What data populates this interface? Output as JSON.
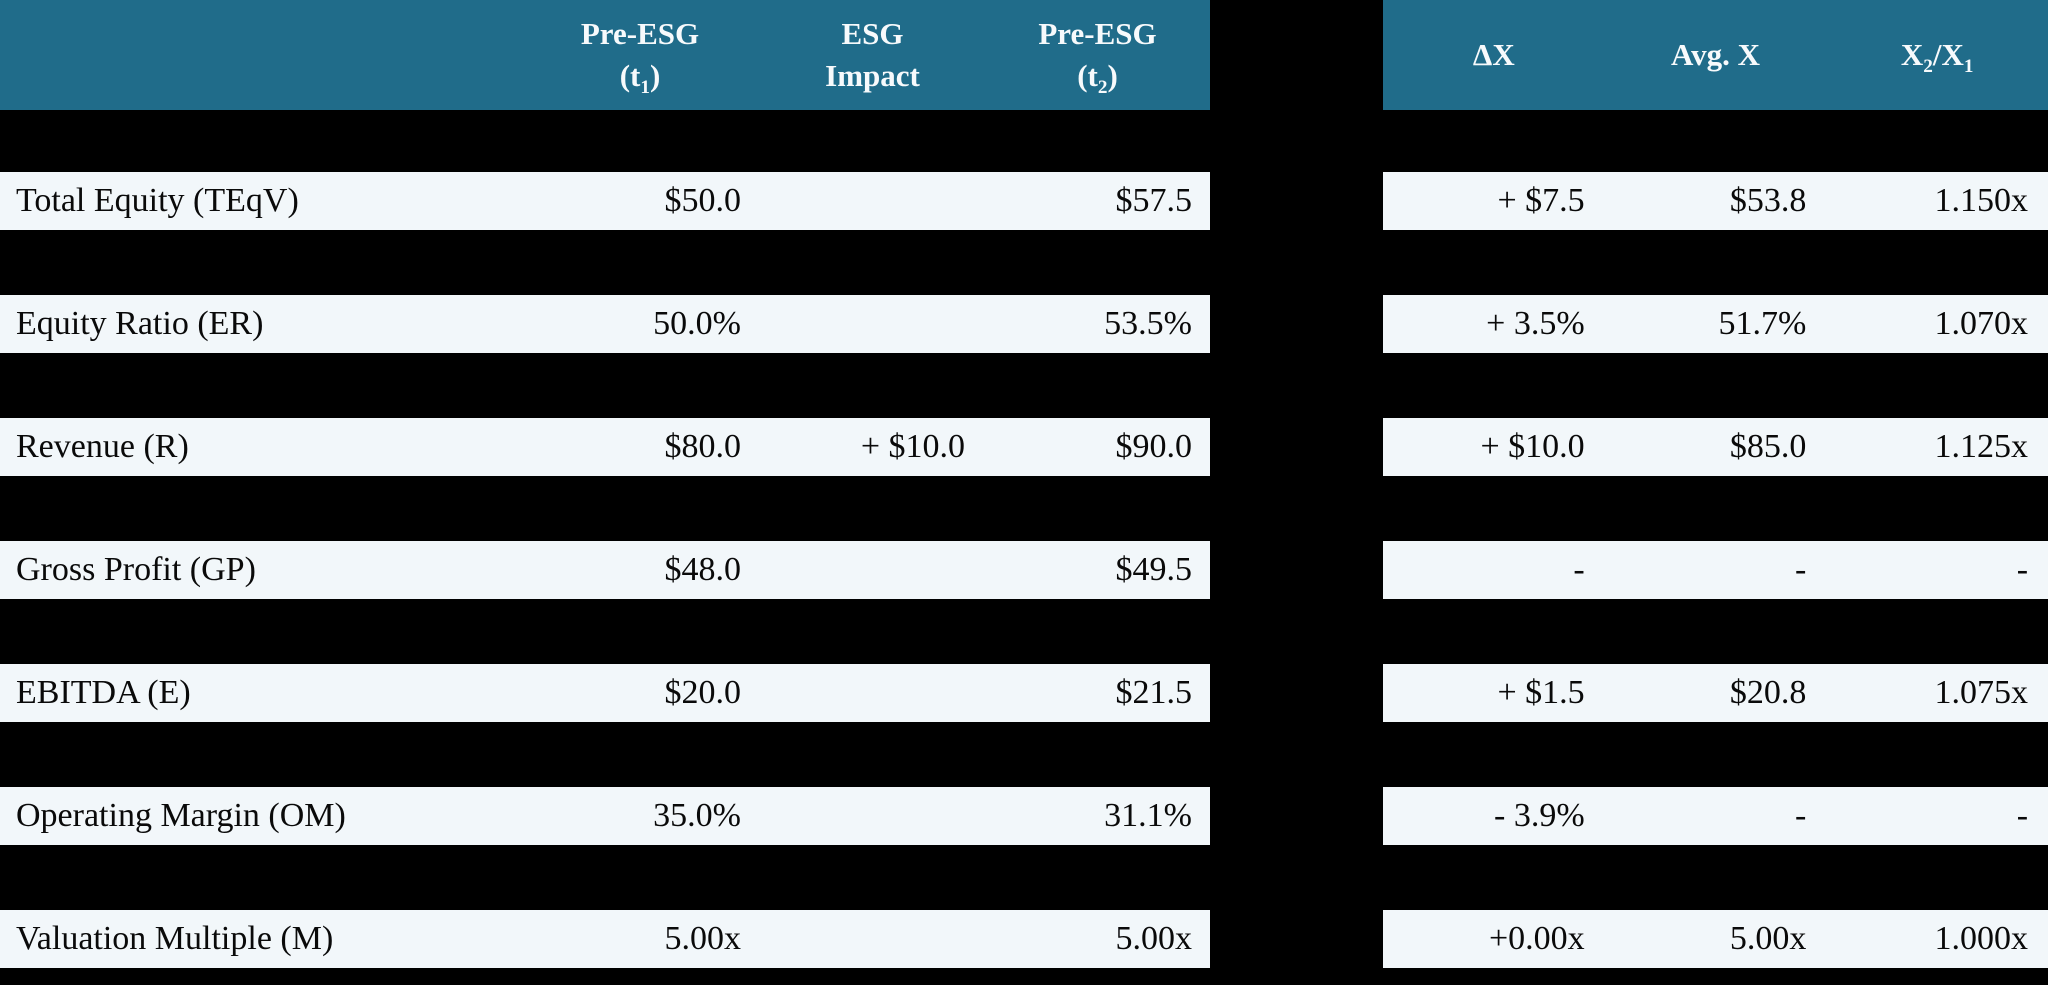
{
  "colors": {
    "page_bg": "#000000",
    "header_bg": "#206C8A",
    "header_text": "#F7FAFC",
    "row_bg": "#F2F7FA",
    "body_text": "#0A0A0A"
  },
  "left_table": {
    "header": {
      "label": "",
      "col_t1": {
        "line1": "Pre-ESG",
        "l2_pre": "(t",
        "l2_sub": "1",
        "l2_post": ")"
      },
      "col_esg": {
        "line1": "ESG",
        "line2": "Impact"
      },
      "col_t2": {
        "line1": "Pre-ESG",
        "l2_pre": "(t",
        "l2_sub": "2",
        "l2_post": ")"
      }
    },
    "rows": [
      {
        "label": "Total Equity (TEqV)",
        "t1": "$50.0",
        "esg": "",
        "t2": "$57.5"
      },
      {
        "label": "Equity Ratio (ER)",
        "t1": "50.0%",
        "esg": "",
        "t2": "53.5%"
      },
      {
        "label": "Revenue (R)",
        "t1": "$80.0",
        "esg": "+ $10.0",
        "t2": "$90.0"
      },
      {
        "label": "Gross Profit (GP)",
        "t1": "$48.0",
        "esg": "",
        "t2": "$49.5"
      },
      {
        "label": "EBITDA (E)",
        "t1": "$20.0",
        "esg": "",
        "t2": "$21.5"
      },
      {
        "label": "Operating Margin (OM)",
        "t1": "35.0%",
        "esg": "",
        "t2": "31.1%"
      },
      {
        "label": "Valuation Multiple (M)",
        "t1": "5.00x",
        "esg": "",
        "t2": "5.00x"
      }
    ]
  },
  "right_table": {
    "header": {
      "col_delta": "ΔX",
      "col_avg": "Avg. X",
      "col_ratio": {
        "pre": "X",
        "sub1": "2",
        "mid": "/X",
        "sub2": "1"
      }
    },
    "rows": [
      {
        "delta": "+ $7.5",
        "avg": "$53.8",
        "ratio": "1.150x"
      },
      {
        "delta": "+ 3.5%",
        "avg": "51.7%",
        "ratio": "1.070x"
      },
      {
        "delta": "+ $10.0",
        "avg": "$85.0",
        "ratio": "1.125x"
      },
      {
        "delta": "-",
        "avg": "-",
        "ratio": "-"
      },
      {
        "delta": "+ $1.5",
        "avg": "$20.8",
        "ratio": "1.075x"
      },
      {
        "delta": "- 3.9%",
        "avg": "-",
        "ratio": "-"
      },
      {
        "delta": "+0.00x",
        "avg": "5.00x",
        "ratio": "1.000x"
      }
    ]
  }
}
